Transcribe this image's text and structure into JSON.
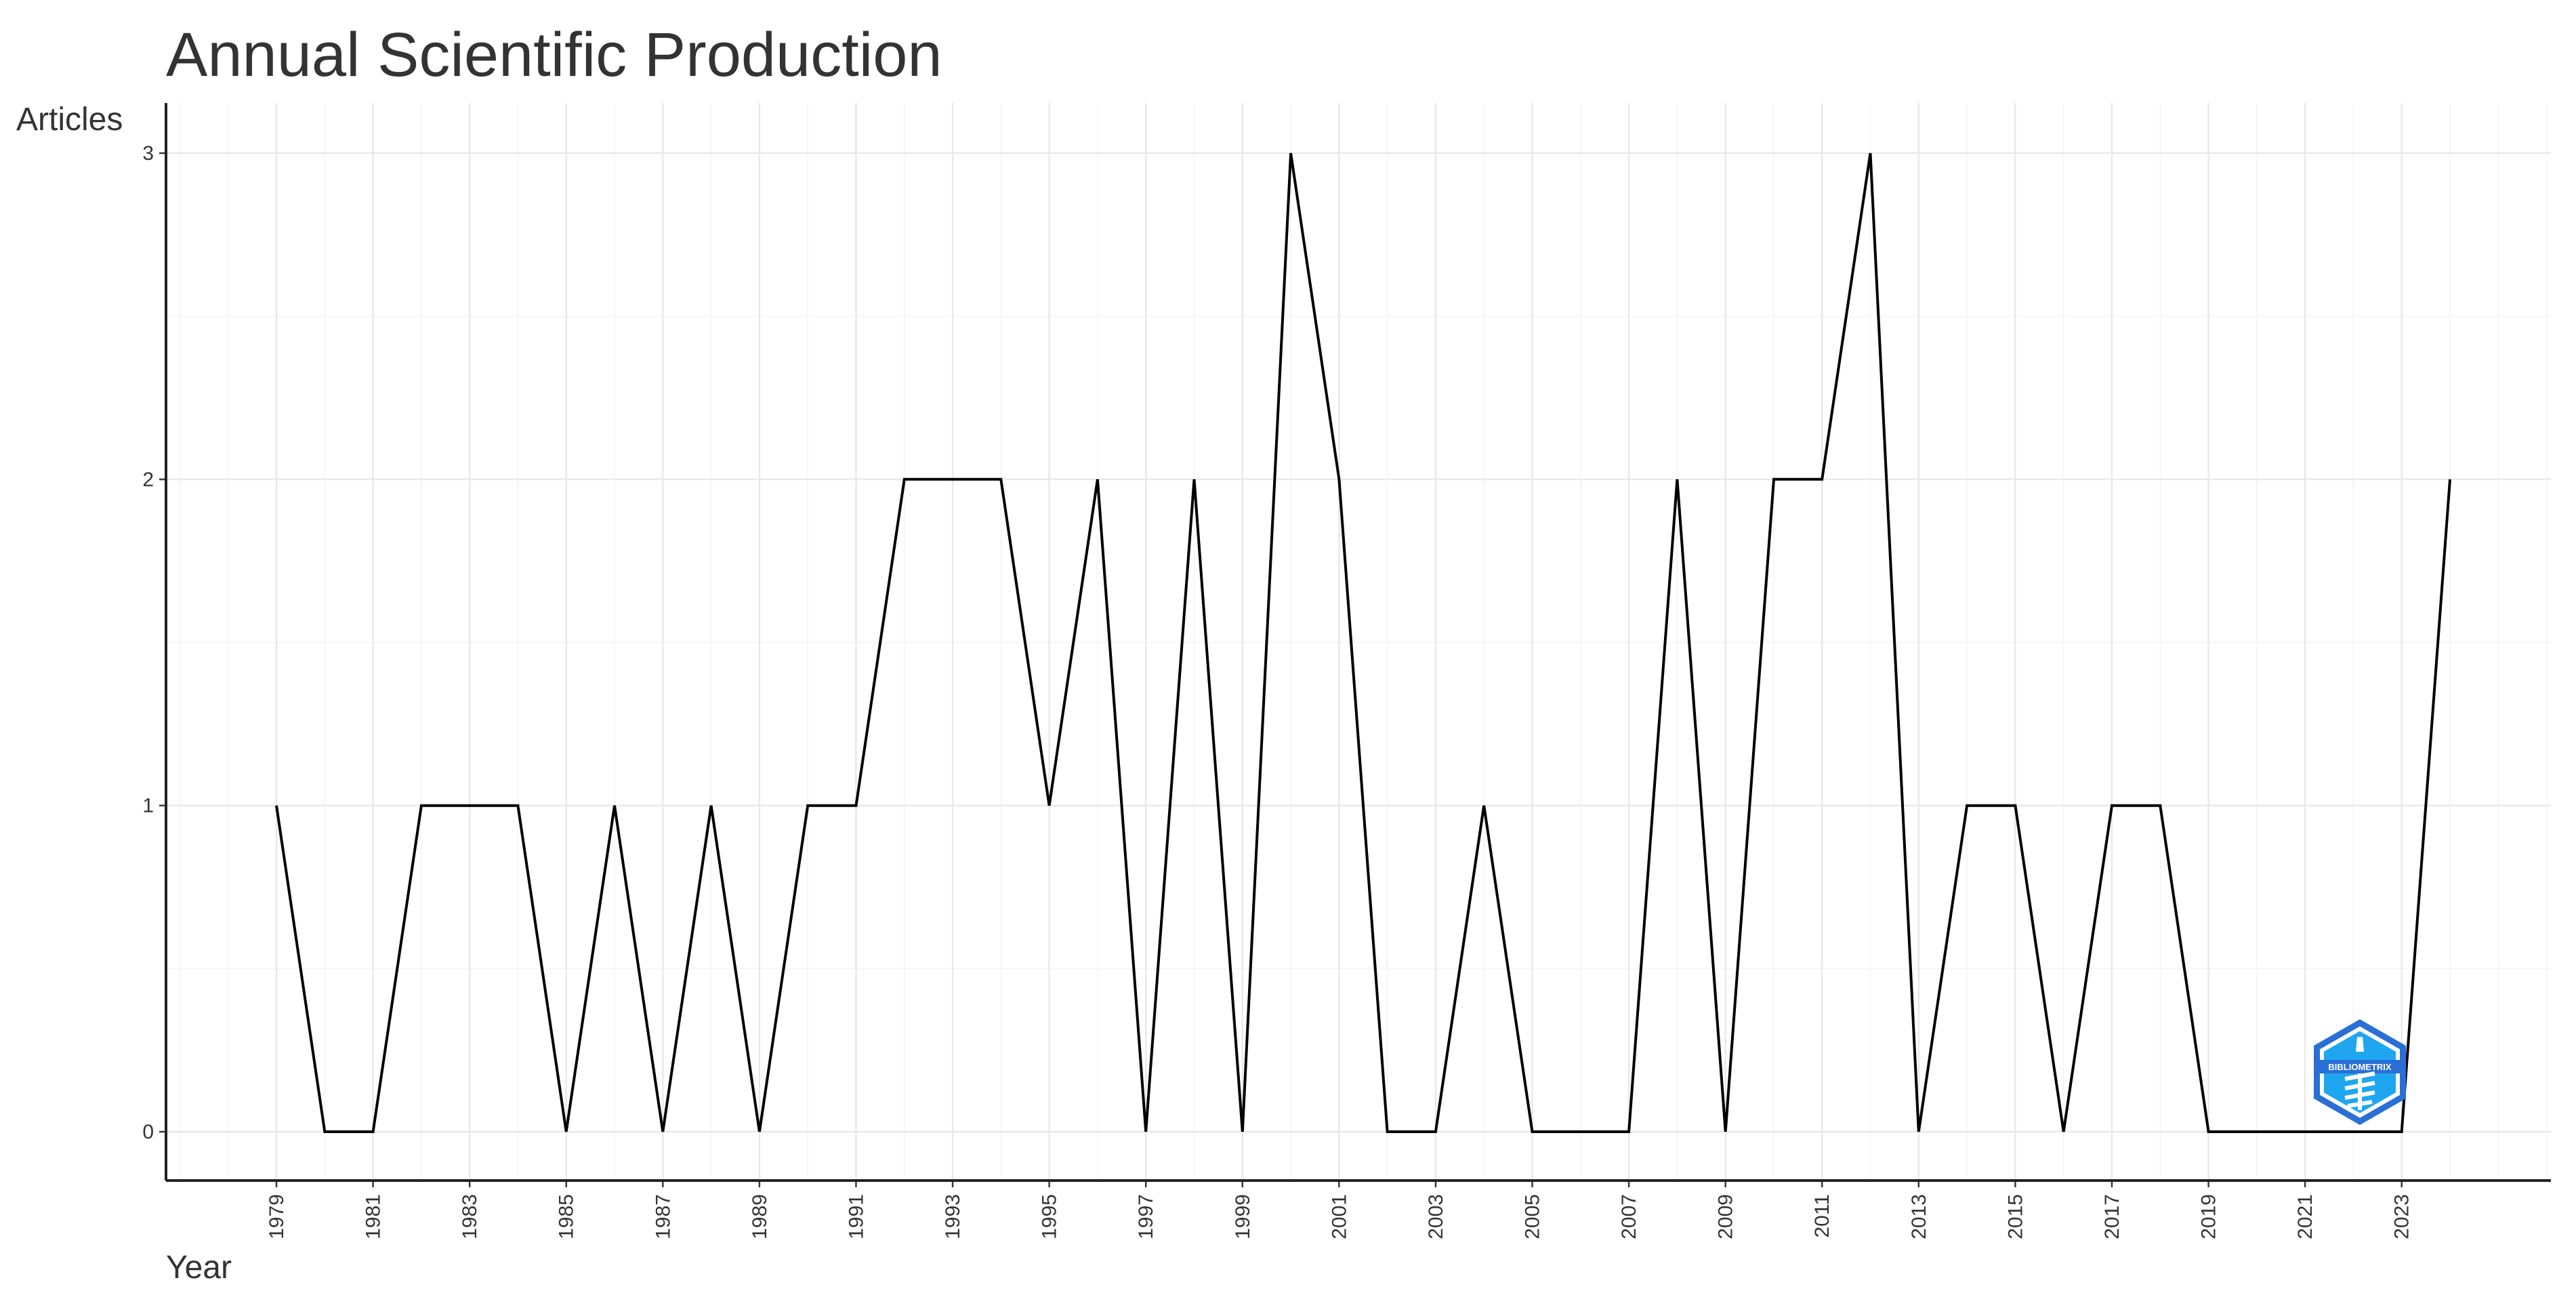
{
  "chart_data": {
    "type": "line",
    "title": "Annual Scientific Production",
    "xlabel": "Year",
    "ylabel": "Articles",
    "x": [
      1979,
      1980,
      1981,
      1982,
      1983,
      1984,
      1985,
      1986,
      1987,
      1988,
      1989,
      1990,
      1991,
      1992,
      1993,
      1994,
      1995,
      1996,
      1997,
      1998,
      1999,
      2000,
      2001,
      2002,
      2003,
      2004,
      2005,
      2006,
      2007,
      2008,
      2009,
      2010,
      2011,
      2012,
      2013,
      2014,
      2015,
      2016,
      2017,
      2018,
      2019,
      2020,
      2021,
      2022,
      2023,
      2024
    ],
    "series": [
      {
        "name": "",
        "values": [
          1,
          0,
          0,
          1,
          1,
          1,
          0,
          1,
          0,
          1,
          0,
          1,
          1,
          2,
          2,
          2,
          1,
          2,
          0,
          2,
          0,
          3,
          2,
          0,
          0,
          1,
          0,
          0,
          0,
          2,
          0,
          2,
          2,
          3,
          0,
          1,
          1,
          0,
          1,
          1,
          0,
          0,
          0,
          0,
          0,
          2
        ],
        "color": "#000000"
      }
    ],
    "xlim": [
      1979,
      2024
    ],
    "ylim": [
      0,
      3
    ],
    "x_tick_labels": [
      "1979",
      "1981",
      "1983",
      "1985",
      "1987",
      "1989",
      "1991",
      "1993",
      "1995",
      "1997",
      "1999",
      "2001",
      "2003",
      "2005",
      "2007",
      "2009",
      "2011",
      "2013",
      "2015",
      "2017",
      "2019",
      "2021",
      "2023"
    ],
    "y_tick_labels": [
      "0",
      "1",
      "2",
      "3"
    ],
    "grid": true,
    "legend": "none",
    "logo": {
      "name": "bibliometrix-logo",
      "text": "BIBLIOMETRIX",
      "colors": [
        "#2a6fd6",
        "#1ea7f0",
        "#ffffff"
      ]
    }
  }
}
